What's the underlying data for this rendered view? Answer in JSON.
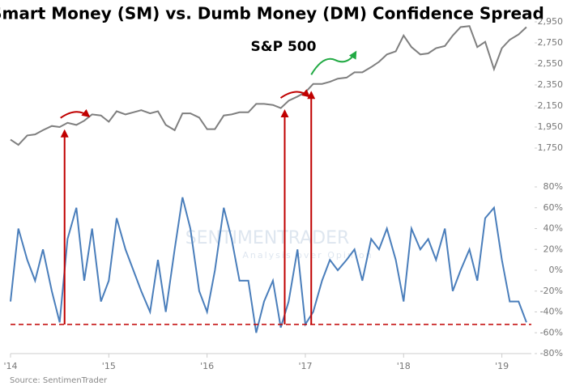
{
  "chart_data": [
    {
      "type": "line",
      "title": "Smart Money (SM) vs. Dumb Money (DM) Confidence Spread",
      "subtitle": "S&P 500",
      "color": "#7f7f7f",
      "x": [
        2014.0,
        2014.08,
        2014.17,
        2014.25,
        2014.33,
        2014.42,
        2014.5,
        2014.58,
        2014.67,
        2014.75,
        2014.83,
        2014.92,
        2015.0,
        2015.08,
        2015.17,
        2015.25,
        2015.33,
        2015.42,
        2015.5,
        2015.58,
        2015.67,
        2015.75,
        2015.83,
        2015.92,
        2016.0,
        2016.08,
        2016.17,
        2016.25,
        2016.33,
        2016.42,
        2016.5,
        2016.58,
        2016.67,
        2016.75,
        2016.83,
        2016.92,
        2017.0,
        2017.08,
        2017.17,
        2017.25,
        2017.33,
        2017.42,
        2017.5,
        2017.58,
        2017.67,
        2017.75,
        2017.83,
        2017.92,
        2018.0,
        2018.08,
        2018.17,
        2018.25,
        2018.33,
        2018.42,
        2018.5,
        2018.58,
        2018.67,
        2018.75,
        2018.83,
        2018.92,
        2019.0,
        2019.08,
        2019.17,
        2019.25
      ],
      "values": [
        1830,
        1780,
        1870,
        1880,
        1920,
        1960,
        1950,
        1990,
        1970,
        2010,
        2070,
        2060,
        2000,
        2100,
        2070,
        2090,
        2110,
        2080,
        2100,
        1970,
        1920,
        2080,
        2080,
        2040,
        1930,
        1930,
        2060,
        2070,
        2090,
        2090,
        2170,
        2170,
        2160,
        2130,
        2200,
        2240,
        2280,
        2360,
        2360,
        2380,
        2410,
        2420,
        2470,
        2470,
        2520,
        2570,
        2640,
        2670,
        2820,
        2710,
        2640,
        2650,
        2700,
        2720,
        2820,
        2900,
        2910,
        2710,
        2760,
        2500,
        2700,
        2780,
        2830,
        2900
      ],
      "xlim": [
        2014,
        2019.3
      ],
      "ylim": [
        1750,
        2950
      ],
      "yticks": [
        {
          "value": 1750,
          "label": "1,750"
        },
        {
          "value": 1950,
          "label": "1,950"
        },
        {
          "value": 2150,
          "label": "2,150"
        },
        {
          "value": 2350,
          "label": "2,350"
        },
        {
          "value": 2550,
          "label": "2,550"
        },
        {
          "value": 2750,
          "label": "2,750"
        },
        {
          "value": 2950,
          "label": "2,950"
        }
      ]
    },
    {
      "type": "line",
      "color": "#4a7ebb",
      "source": "Source: SentimenTrader",
      "watermark": "SENTIMENTRADER",
      "watermark_tagline": "Analysis over Opinion",
      "x": [
        2014.0,
        2014.08,
        2014.17,
        2014.25,
        2014.33,
        2014.42,
        2014.5,
        2014.58,
        2014.67,
        2014.75,
        2014.83,
        2014.92,
        2015.0,
        2015.08,
        2015.17,
        2015.25,
        2015.33,
        2015.42,
        2015.5,
        2015.58,
        2015.67,
        2015.75,
        2015.83,
        2015.92,
        2016.0,
        2016.08,
        2016.17,
        2016.25,
        2016.33,
        2016.42,
        2016.5,
        2016.58,
        2016.67,
        2016.75,
        2016.83,
        2016.92,
        2017.0,
        2017.08,
        2017.17,
        2017.25,
        2017.33,
        2017.42,
        2017.5,
        2017.58,
        2017.67,
        2017.75,
        2017.83,
        2017.92,
        2018.0,
        2018.08,
        2018.17,
        2018.25,
        2018.33,
        2018.42,
        2018.5,
        2018.58,
        2018.67,
        2018.75,
        2018.83,
        2018.92,
        2019.0,
        2019.08,
        2019.17,
        2019.25
      ],
      "values": [
        -30,
        40,
        10,
        -10,
        20,
        -20,
        -50,
        30,
        60,
        -10,
        40,
        -30,
        -10,
        50,
        20,
        0,
        -20,
        -40,
        10,
        -40,
        20,
        70,
        40,
        -20,
        -40,
        0,
        60,
        30,
        -10,
        -10,
        -60,
        -30,
        -10,
        -55,
        -30,
        20,
        -52,
        -40,
        -10,
        10,
        0,
        10,
        20,
        -10,
        30,
        20,
        40,
        10,
        -30,
        40,
        20,
        30,
        10,
        40,
        -20,
        0,
        20,
        -10,
        50,
        60,
        10,
        -30,
        -30,
        -50
      ],
      "threshold": -52,
      "threshold_color": "#c00000",
      "signals": [
        2014.55,
        2016.79,
        2017.06
      ],
      "signal_color": "#c00000",
      "xlim": [
        2014,
        2019.3
      ],
      "ylim": [
        -80,
        80
      ],
      "xticks": [
        {
          "value": 2014,
          "label": "'14"
        },
        {
          "value": 2015,
          "label": "'15"
        },
        {
          "value": 2016,
          "label": "'16"
        },
        {
          "value": 2017,
          "label": "'17"
        },
        {
          "value": 2018,
          "label": "'18"
        },
        {
          "value": 2019,
          "label": "'19"
        }
      ],
      "yticks": [
        {
          "value": -80,
          "label": "-80%"
        },
        {
          "value": -60,
          "label": "-60%"
        },
        {
          "value": -40,
          "label": "-40%"
        },
        {
          "value": -20,
          "label": "-20%"
        },
        {
          "value": 0,
          "label": "0%"
        },
        {
          "value": 20,
          "label": "20%"
        },
        {
          "value": 40,
          "label": "40%"
        },
        {
          "value": 60,
          "label": "60%"
        },
        {
          "value": 80,
          "label": "80%"
        }
      ]
    }
  ]
}
